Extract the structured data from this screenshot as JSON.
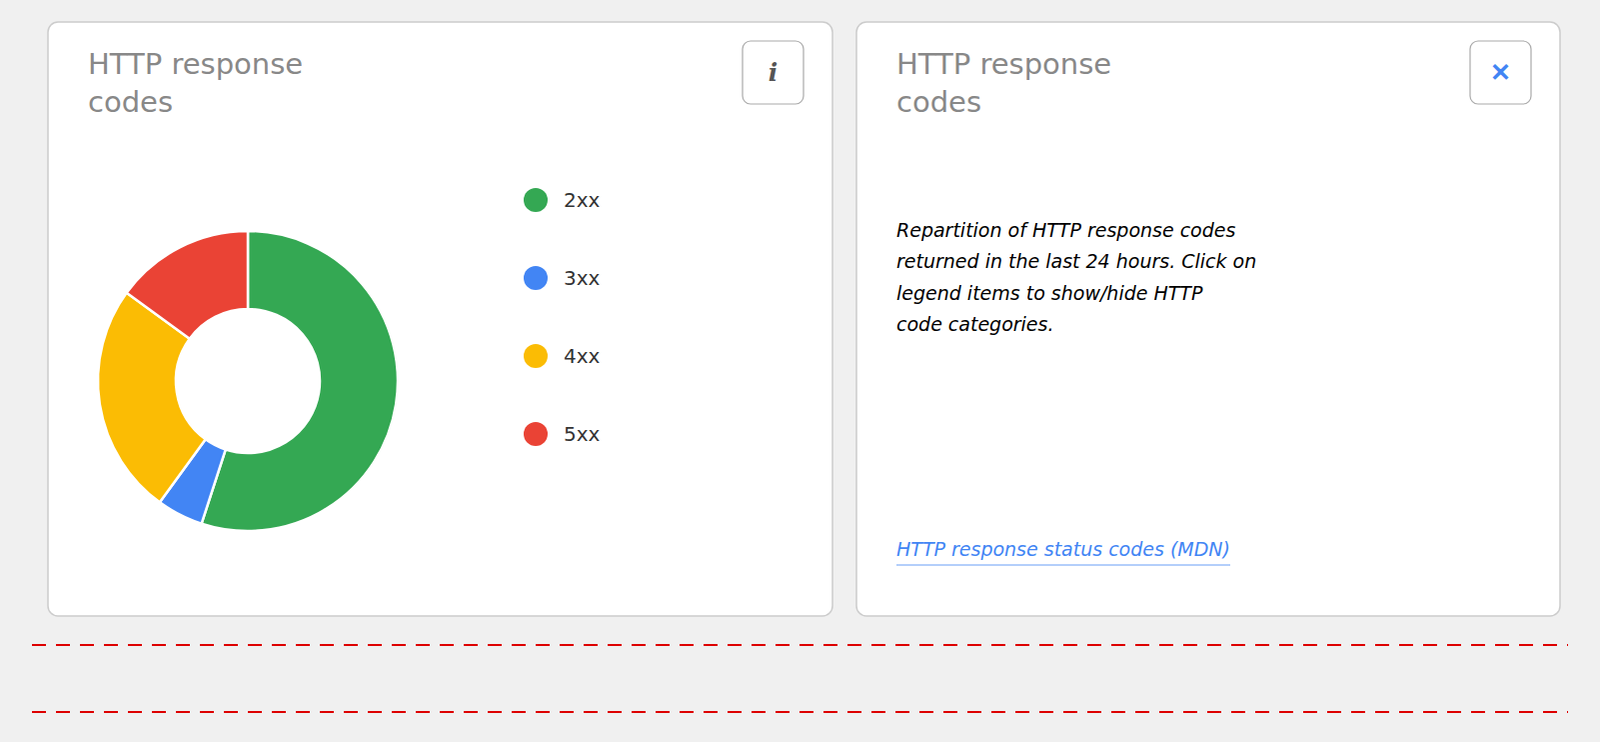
{
  "chart_data": {
    "type": "donut",
    "title": "HTTP response\ncodes",
    "categories": [
      "2xx",
      "3xx",
      "4xx",
      "5xx"
    ],
    "values": [
      55,
      5,
      25,
      15
    ],
    "colors": [
      "#34a853",
      "#4285f4",
      "#fbbc04",
      "#ea4335"
    ],
    "legend": "right",
    "annotations": [
      "i",
      "✕",
      "Repartition of HTTP response codes\nreturned in the last 24 hours. Click on\nlegend items to show/hide HTTP\ncode categories.",
      "HTTP response status codes (MDN)"
    ]
  }
}
